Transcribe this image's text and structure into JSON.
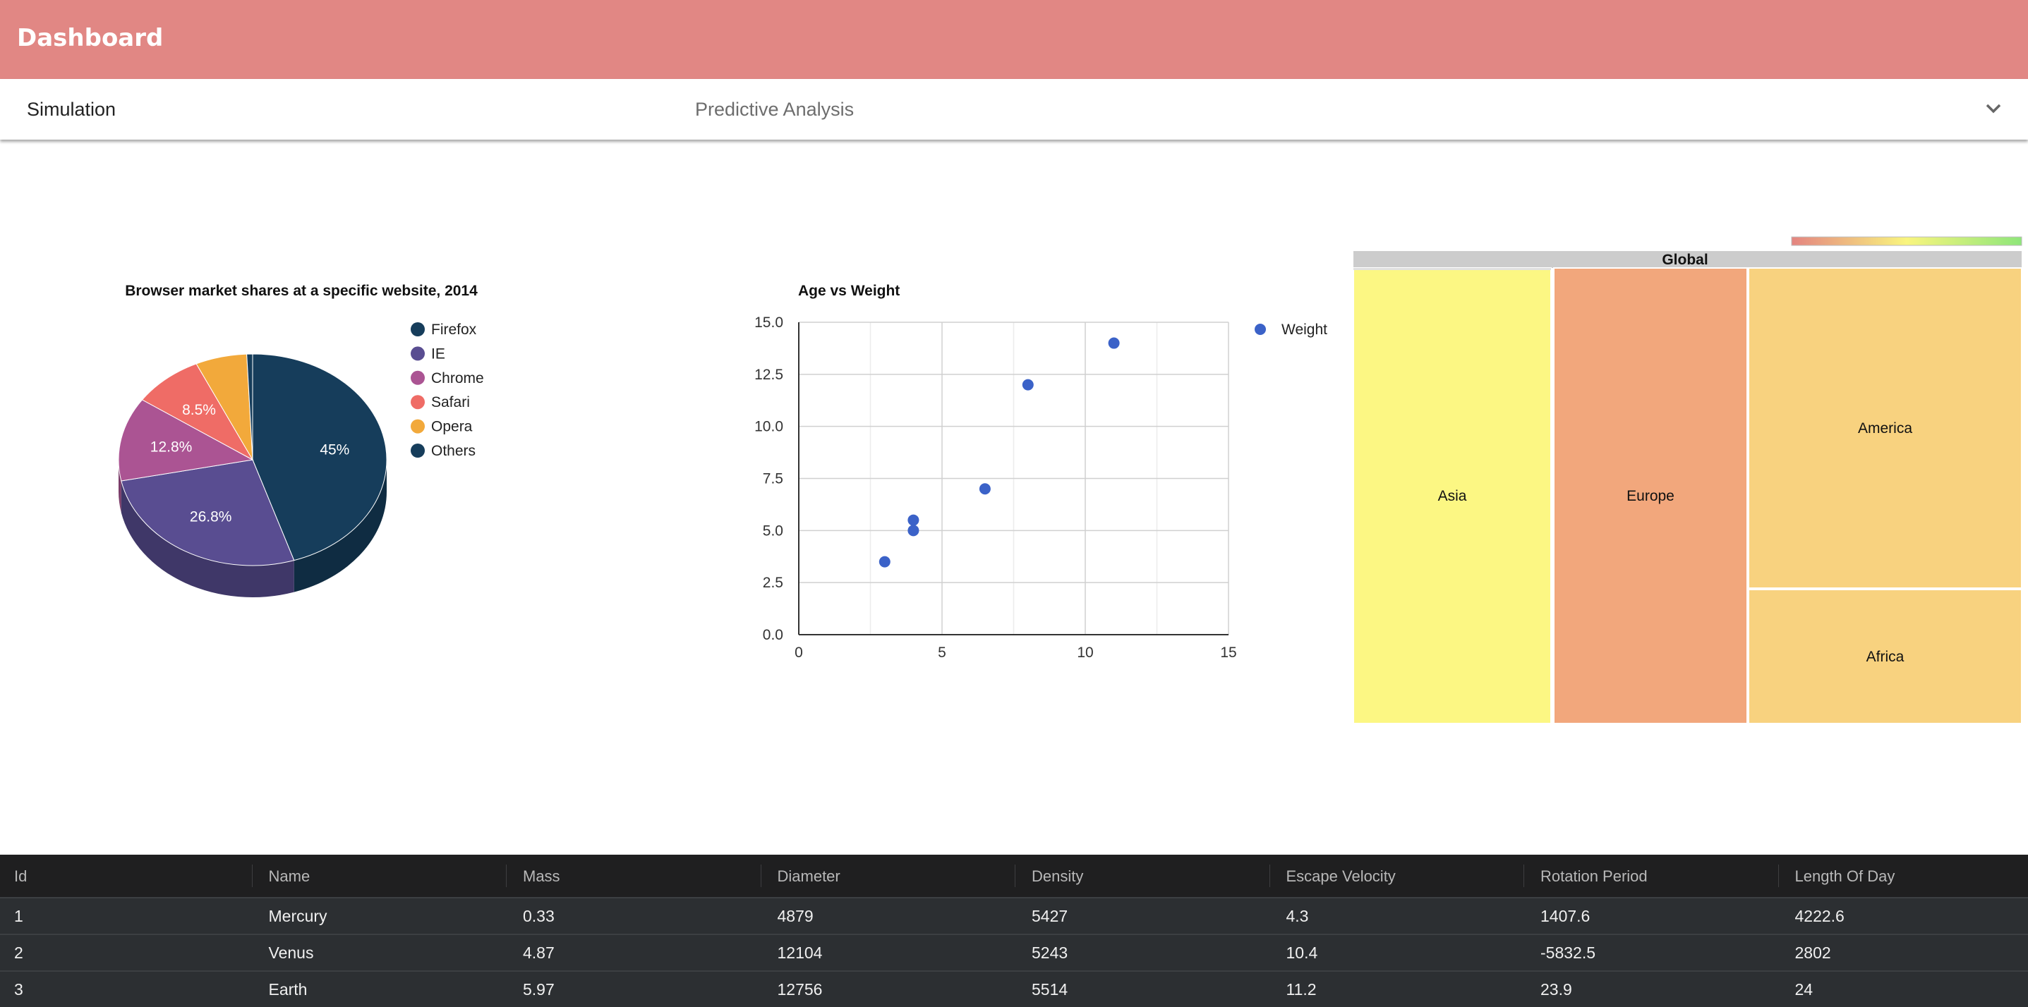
{
  "app": {
    "title": "Dashboard"
  },
  "selector": {
    "label": "Simulation",
    "value": "Predictive Analysis",
    "icon": "chevron-down-icon"
  },
  "charts": {
    "pie": {
      "title": "Browser market shares at a specific website, 2014",
      "colors": [
        "#163d5b",
        "#594d91",
        "#ab5493",
        "#ef6c66",
        "#f2a93b",
        "#163d5b"
      ],
      "side_colors": [
        "#0f2c42",
        "#3f3768",
        "#7a3c69",
        "#ab4d49",
        "#ad7829",
        "#0f2c42"
      ]
    },
    "scatter": {
      "title": "Age vs Weight",
      "series_color": "#3b62c8"
    },
    "treemap": {
      "root_label": "Global",
      "scale_colors": [
        "#e48480",
        "#f9f57e",
        "#8ee67a"
      ]
    }
  },
  "chart_data": [
    {
      "type": "pie",
      "title": "Browser market shares at a specific website, 2014",
      "labels": [
        "Firefox",
        "IE",
        "Chrome",
        "Safari",
        "Opera",
        "Others"
      ],
      "values": [
        45.0,
        26.8,
        12.8,
        8.5,
        6.2,
        0.7
      ],
      "data_labels": [
        "45%",
        "26.8%",
        "12.8%",
        "8.5%",
        "",
        ""
      ],
      "legend": "right"
    },
    {
      "type": "scatter",
      "title": "Age vs Weight",
      "series": [
        {
          "name": "Weight",
          "points": [
            [
              8,
              12
            ],
            [
              4,
              5.5
            ],
            [
              11,
              14
            ],
            [
              4,
              5
            ],
            [
              3,
              3.5
            ],
            [
              6.5,
              7
            ]
          ]
        }
      ],
      "xlim": [
        0,
        15
      ],
      "ylim": [
        0,
        15
      ],
      "xticks": [
        "0",
        "5",
        "10",
        "15"
      ],
      "yticks": [
        "0.0",
        "2.5",
        "5.0",
        "7.5",
        "10.0",
        "12.5",
        "15.0"
      ],
      "grid": true,
      "legend": "top-right"
    },
    {
      "type": "treemap",
      "root": "Global",
      "nodes": [
        {
          "label": "Asia",
          "color": "#fcf783"
        },
        {
          "label": "Europe",
          "color": "#f2a77c"
        },
        {
          "label": "America",
          "color": "#f8d27f"
        },
        {
          "label": "Africa",
          "color": "#f8d27f"
        }
      ]
    }
  ],
  "table": {
    "columns": [
      "Id",
      "Name",
      "Mass",
      "Diameter",
      "Density",
      "Escape Velocity",
      "Rotation Period",
      "Length Of Day"
    ],
    "rows": [
      [
        "1",
        "Mercury",
        "0.33",
        "4879",
        "5427",
        "4.3",
        "1407.6",
        "4222.6"
      ],
      [
        "2",
        "Venus",
        "4.87",
        "12104",
        "5243",
        "10.4",
        "-5832.5",
        "2802"
      ],
      [
        "3",
        "Earth",
        "5.97",
        "12756",
        "5514",
        "11.2",
        "23.9",
        "24"
      ]
    ]
  }
}
